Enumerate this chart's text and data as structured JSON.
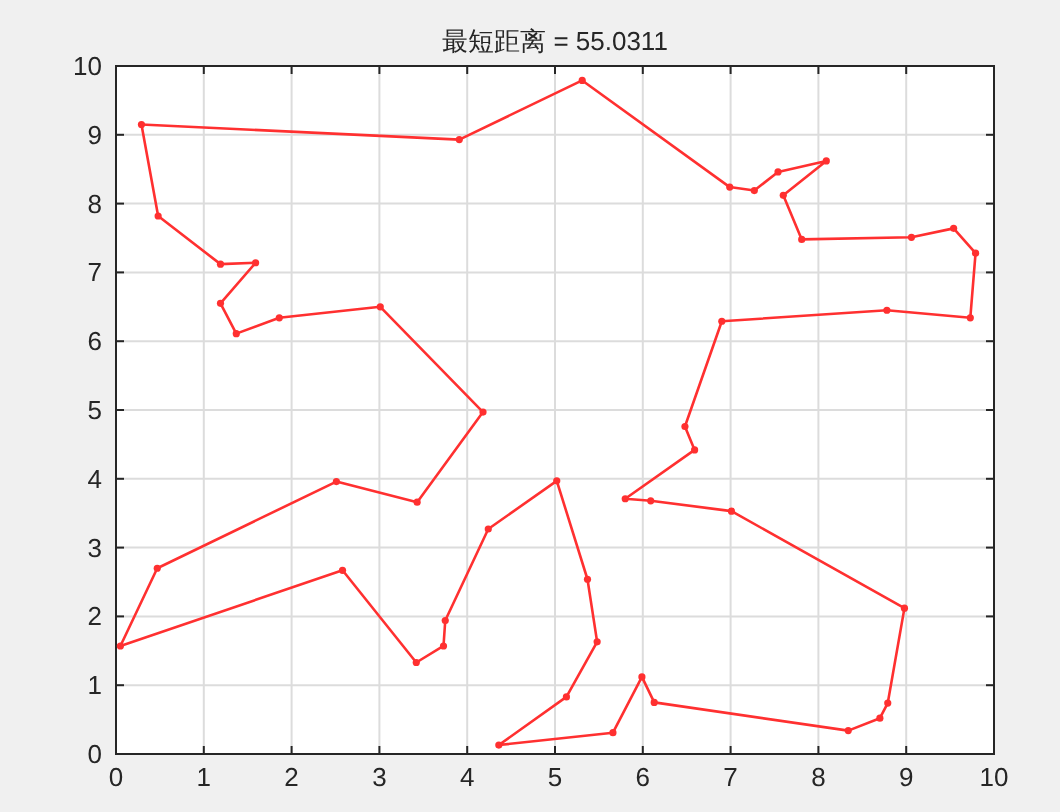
{
  "chart_data": {
    "type": "line",
    "title": "最短距离 = 55.0311",
    "series": [
      {
        "color": "#ff3030",
        "line_style": "solid",
        "x": [
          0.29,
          3.91,
          5.31,
          6.99,
          7.27,
          7.54,
          8.09,
          7.6,
          7.81,
          9.06,
          9.54,
          9.79,
          9.73,
          8.78,
          6.9,
          6.48,
          6.59,
          5.8,
          6.09,
          7.01,
          8.98,
          8.79,
          8.7,
          8.34,
          6.13,
          5.99,
          5.66,
          4.36,
          5.13,
          5.48,
          5.37,
          5.02,
          4.24,
          3.75,
          3.73,
          3.42,
          2.58,
          0.05,
          0.47,
          2.51,
          3.43,
          4.18,
          3.01,
          1.86,
          1.37,
          1.19,
          1.59,
          1.19,
          0.48
        ],
        "values": [
          9.15,
          8.93,
          9.79,
          8.24,
          8.19,
          8.46,
          8.62,
          8.12,
          7.48,
          7.51,
          7.64,
          7.28,
          6.34,
          6.45,
          6.29,
          4.76,
          4.42,
          3.71,
          3.68,
          3.53,
          2.12,
          0.74,
          0.52,
          0.34,
          0.75,
          1.12,
          0.31,
          0.13,
          0.83,
          1.63,
          2.54,
          3.97,
          3.27,
          1.94,
          1.57,
          1.33,
          2.67,
          1.57,
          2.7,
          3.96,
          3.66,
          4.97,
          6.5,
          6.34,
          6.11,
          6.55,
          7.14,
          7.12,
          7.82
        ]
      },
      {
        "color": "#ff3030",
        "line_style": "solid",
        "x": [
          0.48,
          0.29
        ],
        "values": [
          7.82,
          9.15
        ]
      },
      {
        "type": "scatter",
        "color": "#ff3030",
        "marker": "circle",
        "x": [
          0.29,
          3.91,
          5.31,
          6.99,
          7.27,
          7.54,
          8.09,
          7.6,
          7.81,
          9.06,
          9.54,
          9.79,
          9.73,
          8.78,
          6.9,
          6.48,
          6.59,
          5.8,
          6.09,
          7.01,
          8.98,
          8.79,
          8.7,
          8.34,
          6.13,
          5.99,
          5.66,
          4.36,
          5.13,
          5.48,
          5.37,
          5.02,
          4.24,
          3.75,
          3.73,
          3.42,
          2.58,
          0.05,
          0.47,
          2.51,
          3.43,
          4.18,
          3.01,
          1.86,
          1.37,
          1.19,
          1.59,
          1.19,
          0.48
        ],
        "values": [
          9.15,
          8.93,
          9.79,
          8.24,
          8.19,
          8.46,
          8.62,
          8.12,
          7.48,
          7.51,
          7.64,
          7.28,
          6.34,
          6.45,
          6.29,
          4.76,
          4.42,
          3.71,
          3.68,
          3.53,
          2.12,
          0.74,
          0.52,
          0.34,
          0.75,
          1.12,
          0.31,
          0.13,
          0.83,
          1.63,
          2.54,
          3.97,
          3.27,
          1.94,
          1.57,
          1.33,
          2.67,
          1.57,
          2.7,
          3.96,
          3.66,
          4.97,
          6.5,
          6.34,
          6.11,
          6.55,
          7.14,
          7.12,
          7.82
        ]
      }
    ],
    "xlim": [
      0,
      10
    ],
    "ylim": [
      0,
      10
    ],
    "xticks": [
      0,
      1,
      2,
      3,
      4,
      5,
      6,
      7,
      8,
      9,
      10
    ],
    "yticks": [
      0,
      1,
      2,
      3,
      4,
      5,
      6,
      7,
      8,
      9,
      10
    ],
    "grid": true
  }
}
